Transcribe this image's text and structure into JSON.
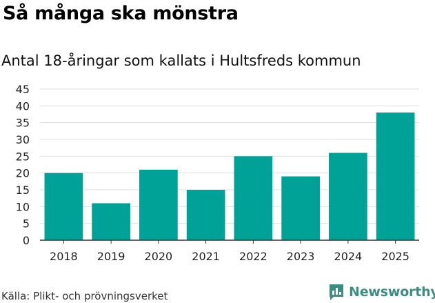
{
  "title": "Så många ska mönstra",
  "subtitle": "Antal 18-åringar som kallats i Hultsfreds kommun",
  "source": "Källa: Plikt- och prövningsverket",
  "brand": {
    "name": "Newsworthy",
    "logo_icon": "bar-chart-speech-bubble-icon",
    "color": "#3e8d83"
  },
  "colors": {
    "bar": "#00a298",
    "grid": "#dedede",
    "axis": "#333333"
  },
  "chart_data": {
    "type": "bar",
    "title": "Så många ska mönstra",
    "subtitle": "Antal 18-åringar som kallats i Hultsfreds kommun",
    "categories": [
      "2018",
      "2019",
      "2020",
      "2021",
      "2022",
      "2023",
      "2024",
      "2025"
    ],
    "values": [
      20,
      11,
      21,
      15,
      25,
      19,
      26,
      38
    ],
    "ylim": [
      0,
      45
    ],
    "yticks": [
      0,
      5,
      10,
      15,
      20,
      25,
      30,
      35,
      40,
      45
    ],
    "grid": true,
    "legend": "none"
  }
}
